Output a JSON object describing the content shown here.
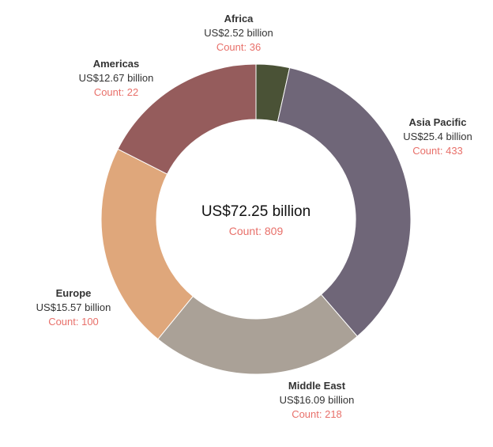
{
  "chart_data": {
    "type": "pie",
    "center": {
      "total": "US$72.25 billion",
      "count": "Count: 809"
    },
    "slices": [
      {
        "region": "Africa",
        "value": 2.52,
        "amount": "US$2.52 billion",
        "count_value": 36,
        "count": "Count: 36",
        "color": "#4a5236"
      },
      {
        "region": "Asia Pacific",
        "value": 25.4,
        "amount": "US$25.4 billion",
        "count_value": 433,
        "count": "Count: 433",
        "color": "#6f6678"
      },
      {
        "region": "Middle East",
        "value": 16.09,
        "amount": "US$16.09 billion",
        "count_value": 218,
        "count": "Count: 218",
        "color": "#aaa197"
      },
      {
        "region": "Europe",
        "value": 15.57,
        "amount": "US$15.57 billion",
        "count_value": 100,
        "count": "Count: 100",
        "color": "#dfa77b"
      },
      {
        "region": "Americas",
        "value": 12.67,
        "amount": "US$12.67 billion",
        "count_value": 22,
        "count": "Count: 22",
        "color": "#955c5c"
      }
    ]
  }
}
